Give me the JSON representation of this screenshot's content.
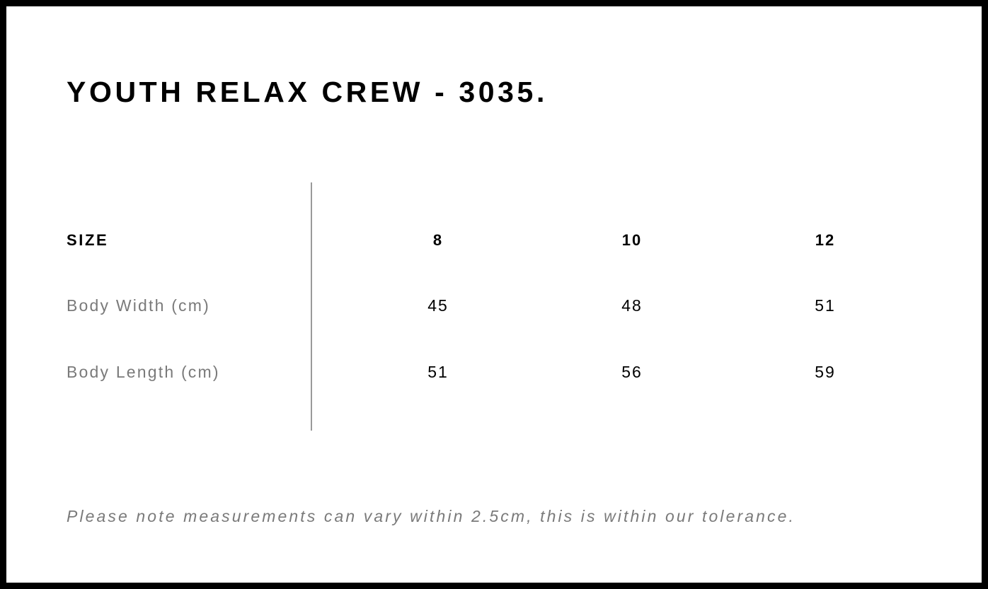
{
  "title": "YOUTH RELAX CREW - 3035.",
  "table": {
    "header": {
      "label": "SIZE",
      "sizes": [
        "8",
        "10",
        "12"
      ]
    },
    "rows": [
      {
        "label": "Body Width (cm)",
        "values": [
          "45",
          "48",
          "51"
        ]
      },
      {
        "label": "Body Length (cm)",
        "values": [
          "51",
          "56",
          "59"
        ]
      }
    ]
  },
  "note": "Please note measurements can vary within 2.5cm, this is within our tolerance."
}
